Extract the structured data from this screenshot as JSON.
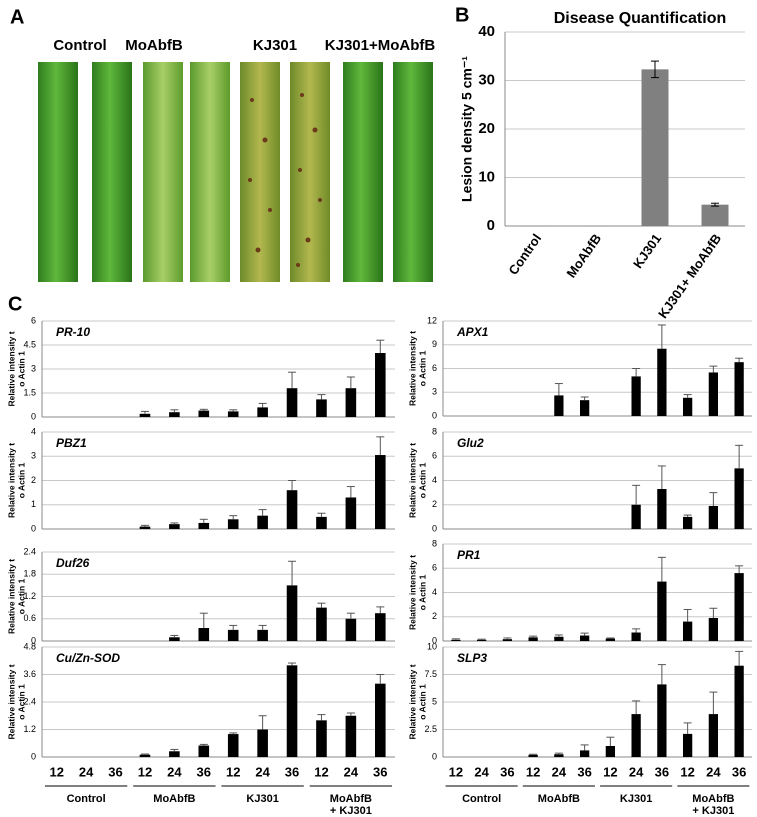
{
  "panel_labels": [
    "A",
    "B",
    "C"
  ],
  "photo_labels": [
    "Control",
    "MoAbfB",
    "KJ301",
    "KJ301+MoAbfB"
  ],
  "c_axis": {
    "times": [
      "12",
      "24",
      "36"
    ],
    "groups": [
      "Control",
      "MoAbfB",
      "KJ301",
      [
        "MoAbfB",
        "+ KJ301"
      ]
    ]
  },
  "chart_data": [
    {
      "type": "bar",
      "title": "Disease Quantification",
      "ylabel": "Lesion density 5 cm⁻¹",
      "categories": [
        "Control",
        "MoAbfB",
        "KJ301",
        "KJ301+ MoAbfB"
      ],
      "values": [
        0.1,
        0.1,
        32.3,
        4.4
      ],
      "errors": [
        0,
        0,
        1.7,
        0.3
      ],
      "error_bars": "both",
      "color": "#808080",
      "ylim": [
        0,
        40
      ],
      "yticks": [
        0,
        10,
        20,
        30,
        40
      ],
      "grid": true
    },
    {
      "type": "bar",
      "title": "PR-10",
      "ylabel": [
        "Relative intensity t",
        "o Actin 1"
      ],
      "values": [
        0,
        0,
        0,
        0.2,
        0.3,
        0.4,
        0.35,
        0.6,
        1.8,
        1.1,
        1.8,
        4.0
      ],
      "errors": [
        0,
        0,
        0,
        0.15,
        0.15,
        0.08,
        0.1,
        0.25,
        1.0,
        0.3,
        0.7,
        0.8
      ],
      "error_bars": "up",
      "color": "#000000",
      "ylim": [
        0,
        6
      ],
      "yticks": [
        0,
        1.5,
        3,
        4.5,
        6
      ],
      "grid": true
    },
    {
      "type": "bar",
      "title": "APX1",
      "ylabel": [
        "Relative intensity t",
        "o Actin 1"
      ],
      "values": [
        0,
        0,
        0,
        0,
        2.6,
        2.0,
        0,
        5.0,
        8.5,
        2.3,
        5.5,
        6.8
      ],
      "errors": [
        0,
        0,
        0,
        0,
        1.5,
        0.4,
        0,
        1.0,
        3.0,
        0.4,
        0.8,
        0.5
      ],
      "error_bars": "up",
      "color": "#000000",
      "ylim": [
        0,
        12
      ],
      "yticks": [
        0,
        3,
        6,
        9,
        12
      ],
      "grid": true
    },
    {
      "type": "bar",
      "title": "PBZ1",
      "ylabel": [
        "Relative intensity t",
        "o Actin 1"
      ],
      "values": [
        0,
        0,
        0,
        0.1,
        0.2,
        0.25,
        0.4,
        0.55,
        1.6,
        0.5,
        1.3,
        3.05
      ],
      "errors": [
        0,
        0,
        0,
        0.05,
        0.05,
        0.15,
        0.15,
        0.25,
        0.4,
        0.15,
        0.45,
        0.75
      ],
      "error_bars": "up",
      "color": "#000000",
      "ylim": [
        0,
        4
      ],
      "yticks": [
        0,
        1,
        2,
        3,
        4
      ],
      "grid": true
    },
    {
      "type": "bar",
      "title": "Glu2",
      "ylabel": [
        "Relative intensity t",
        "o Actin 1"
      ],
      "values": [
        0,
        0,
        0,
        0,
        0,
        0,
        0,
        2.0,
        3.3,
        1.0,
        1.9,
        5.0
      ],
      "errors": [
        0,
        0,
        0,
        0,
        0,
        0,
        0,
        1.6,
        1.9,
        0.15,
        1.1,
        1.9
      ],
      "error_bars": "up",
      "color": "#000000",
      "ylim": [
        0,
        8
      ],
      "yticks": [
        0,
        2,
        4,
        6,
        8
      ],
      "grid": true
    },
    {
      "type": "bar",
      "title": "Duf26",
      "ylabel": [
        "Relative intensity t",
        "o Actin 1"
      ],
      "values": [
        0,
        0,
        0,
        0,
        0.1,
        0.35,
        0.3,
        0.3,
        1.5,
        0.9,
        0.6,
        0.75
      ],
      "errors": [
        0,
        0,
        0,
        0,
        0.05,
        0.4,
        0.12,
        0.12,
        0.65,
        0.12,
        0.15,
        0.17
      ],
      "error_bars": "up",
      "color": "#000000",
      "ylim": [
        0,
        2.4
      ],
      "yticks": [
        0,
        0.6,
        1.2,
        1.8,
        2.4
      ],
      "grid": true
    },
    {
      "type": "bar",
      "title": "PR1",
      "ylabel": [
        "Relative intensity t",
        "o Actin 1"
      ],
      "values": [
        0.1,
        0.1,
        0.15,
        0.3,
        0.35,
        0.45,
        0.2,
        0.7,
        4.9,
        1.6,
        1.9,
        5.6
      ],
      "errors": [
        0.08,
        0.05,
        0.1,
        0.1,
        0.15,
        0.2,
        0.05,
        0.3,
        2.0,
        1.0,
        0.8,
        0.6
      ],
      "error_bars": "up",
      "color": "#000000",
      "ylim": [
        0,
        8
      ],
      "yticks": [
        0,
        2,
        4,
        6,
        8
      ],
      "grid": true
    },
    {
      "type": "bar",
      "title": "Cu/Zn-SOD",
      "ylabel": [
        "Relative intensity t",
        "o Actin 1"
      ],
      "values": [
        0,
        0,
        0,
        0.1,
        0.25,
        0.5,
        1.0,
        1.2,
        4.0,
        1.6,
        1.8,
        3.2
      ],
      "errors": [
        0,
        0,
        0,
        0.03,
        0.08,
        0.05,
        0.05,
        0.6,
        0.1,
        0.25,
        0.12,
        0.4
      ],
      "error_bars": "up",
      "color": "#000000",
      "ylim": [
        0,
        4.8
      ],
      "yticks": [
        0,
        1.2,
        2.4,
        3.6,
        4.8
      ],
      "grid": true
    },
    {
      "type": "bar",
      "title": "SLP3",
      "ylabel": [
        "Relative intensity t",
        "o Actin 1"
      ],
      "values": [
        0,
        0,
        0,
        0.2,
        0.25,
        0.6,
        1.0,
        3.9,
        6.6,
        2.1,
        3.9,
        8.3
      ],
      "errors": [
        0,
        0,
        0,
        0.05,
        0.1,
        0.5,
        0.8,
        1.2,
        1.8,
        1.0,
        2.0,
        1.3
      ],
      "error_bars": "up",
      "color": "#000000",
      "ylim": [
        0,
        10
      ],
      "yticks": [
        0,
        2.5,
        5,
        7.5,
        10
      ],
      "grid": true
    }
  ]
}
